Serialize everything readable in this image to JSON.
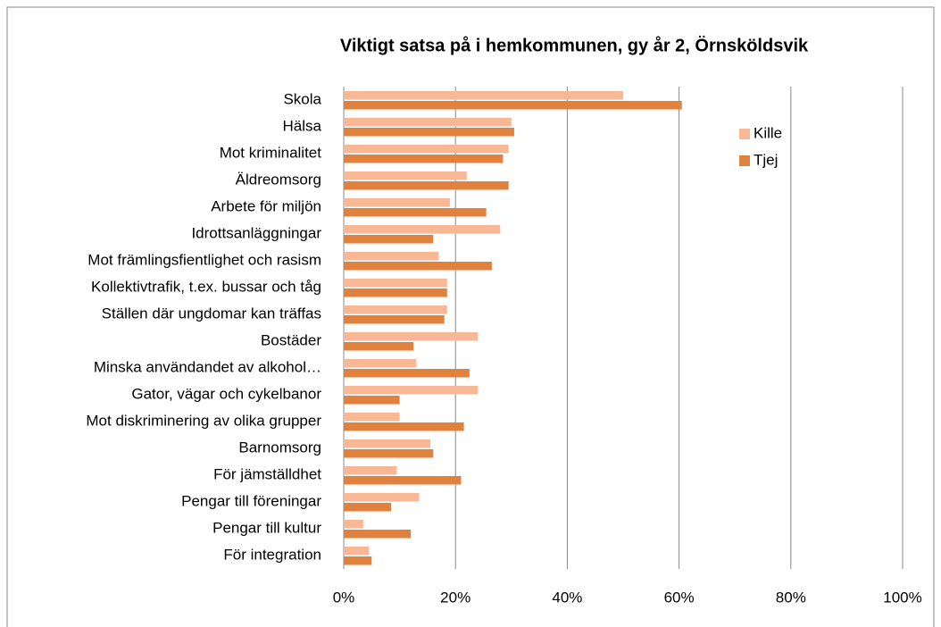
{
  "chart_data": {
    "type": "barh",
    "title": "Viktigt satsa på i hemkommunen, gy år 2, Örnsköldsvik",
    "categories": [
      "Skola",
      "Hälsa",
      "Mot kriminalitet",
      "Äldreomsorg",
      "Arbete för miljön",
      "Idrottsanläggningar",
      "Mot främlingsfientlighet och rasism",
      "Kollektivtrafik, t.ex. bussar och tåg",
      "Ställen där ungdomar kan träffas",
      "Bostäder",
      "Minska användandet av alkohol…",
      "Gator, vägar och cykelbanor",
      "Mot diskriminering av olika grupper",
      "Barnomsorg",
      "För jämställdhet",
      "Pengar till föreningar",
      "Pengar till kultur",
      "För integration"
    ],
    "series": [
      {
        "name": "Kille",
        "color": "#f9b895",
        "values": [
          50,
          30,
          29.5,
          22,
          19,
          28,
          17,
          18.5,
          18.5,
          24,
          13,
          24,
          10,
          15.5,
          9.5,
          13.5,
          3.5,
          4.5
        ]
      },
      {
        "name": "Tjej",
        "color": "#e0813e",
        "values": [
          60.5,
          30.5,
          28.5,
          29.5,
          25.5,
          16,
          26.5,
          18.5,
          18,
          12.5,
          22.5,
          10,
          21.5,
          16,
          21,
          8.5,
          12,
          5
        ]
      }
    ],
    "xlim": [
      0,
      100
    ],
    "xticks": [
      {
        "value": 0,
        "label": "0%"
      },
      {
        "value": 20,
        "label": "20%"
      },
      {
        "value": 40,
        "label": "40%"
      },
      {
        "value": 60,
        "label": "60%"
      },
      {
        "value": 80,
        "label": "80%"
      },
      {
        "value": 100,
        "label": "100%"
      }
    ],
    "grid": true,
    "legend": "upper right"
  }
}
